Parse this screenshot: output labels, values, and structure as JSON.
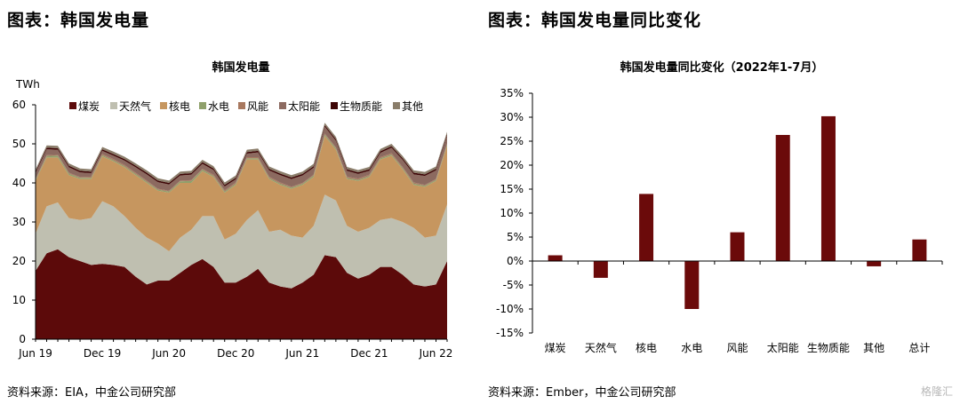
{
  "left_panel": {
    "heading": "图表：韩国发电量",
    "source": "资料来源：EIA，中金公司研究部"
  },
  "right_panel": {
    "heading": "图表：韩国发电量同比变化",
    "source": "资料来源：Ember，中金公司研究部"
  },
  "watermark": "格隆汇",
  "chart_data": [
    {
      "type": "area",
      "stacked": true,
      "title": "韩国发电量",
      "ylabel": "TWh",
      "ylim": [
        0,
        60
      ],
      "yticks": [
        0,
        10,
        20,
        30,
        40,
        50,
        60
      ],
      "xtick_labels": [
        "Jun 19",
        "Dec 19",
        "Jun 20",
        "Dec 20",
        "Jun 21",
        "Dec 21",
        "Jun 22"
      ],
      "x": [
        "2019-06",
        "2019-07",
        "2019-08",
        "2019-09",
        "2019-10",
        "2019-11",
        "2019-12",
        "2020-01",
        "2020-02",
        "2020-03",
        "2020-04",
        "2020-05",
        "2020-06",
        "2020-07",
        "2020-08",
        "2020-09",
        "2020-10",
        "2020-11",
        "2020-12",
        "2021-01",
        "2021-02",
        "2021-03",
        "2021-04",
        "2021-05",
        "2021-06",
        "2021-07",
        "2021-08",
        "2021-09",
        "2021-10",
        "2021-11",
        "2021-12",
        "2022-01",
        "2022-02",
        "2022-03",
        "2022-04",
        "2022-05",
        "2022-06",
        "2022-07"
      ],
      "legend_position": "top",
      "grid": false,
      "series": [
        {
          "name": "煤炭",
          "color": "#5c0a0a",
          "values": [
            17.5,
            22,
            23,
            21,
            20,
            19,
            19.3,
            19,
            18.5,
            16,
            14,
            15,
            15,
            17,
            19,
            20.5,
            18.5,
            14.5,
            14.5,
            16,
            18,
            14.5,
            13.5,
            13,
            14.5,
            16.5,
            21.5,
            21,
            17,
            15.5,
            16.5,
            18.5,
            18.5,
            16.5,
            14,
            13.5,
            14,
            20
          ]
        },
        {
          "name": "天然气",
          "color": "#bfbfb0",
          "values": [
            9.5,
            12,
            12,
            10,
            10.5,
            12,
            16,
            15,
            13,
            12.5,
            12,
            9.5,
            7.5,
            9,
            9,
            11,
            13,
            11,
            12.5,
            14.5,
            15,
            13,
            14.5,
            13.5,
            11.5,
            12.5,
            15.5,
            14.5,
            12,
            12,
            12,
            12,
            12.5,
            13.5,
            14.5,
            12.5,
            12.5,
            14.5
          ]
        },
        {
          "name": "核电",
          "color": "#c6965f",
          "values": [
            13.5,
            12.5,
            11.5,
            11,
            10.5,
            10,
            11.5,
            11.5,
            12.5,
            13.5,
            14,
            13.5,
            15,
            14,
            12,
            11.5,
            10,
            12,
            12.5,
            15.5,
            13,
            13.5,
            11.5,
            12,
            13.5,
            12.5,
            15,
            13,
            12,
            13,
            13,
            15.5,
            16,
            13.5,
            11,
            13,
            14,
            15
          ]
        },
        {
          "name": "水电",
          "color": "#8fa06b",
          "values": [
            0.3,
            0.4,
            0.5,
            0.4,
            0.3,
            0.3,
            0.3,
            0.3,
            0.3,
            0.3,
            0.3,
            0.3,
            0.3,
            0.4,
            0.5,
            0.4,
            0.3,
            0.3,
            0.3,
            0.3,
            0.3,
            0.3,
            0.3,
            0.3,
            0.3,
            0.4,
            0.4,
            0.4,
            0.3,
            0.3,
            0.3,
            0.3,
            0.3,
            0.3,
            0.3,
            0.3,
            0.3,
            0.4
          ]
        },
        {
          "name": "风能",
          "color": "#a8785f",
          "values": [
            0.2,
            0.2,
            0.2,
            0.2,
            0.2,
            0.3,
            0.3,
            0.3,
            0.3,
            0.3,
            0.3,
            0.2,
            0.2,
            0.2,
            0.2,
            0.2,
            0.3,
            0.3,
            0.3,
            0.3,
            0.3,
            0.3,
            0.3,
            0.2,
            0.2,
            0.2,
            0.2,
            0.2,
            0.3,
            0.3,
            0.3,
            0.3,
            0.3,
            0.3,
            0.3,
            0.2,
            0.2,
            0.2
          ]
        },
        {
          "name": "太阳能",
          "color": "#8c6a60",
          "values": [
            1.5,
            1.5,
            1.3,
            1.4,
            1.2,
            0.9,
            0.8,
            0.9,
            1.1,
            1.4,
            1.6,
            1.7,
            1.6,
            1.3,
            1.4,
            1.3,
            1.2,
            1.0,
            0.8,
            0.9,
            1.2,
            1.6,
            1.9,
            2.0,
            1.9,
            1.8,
            1.8,
            1.7,
            1.5,
            1.2,
            1.0,
            1.1,
            1.4,
            1.8,
            2.1,
            2.3,
            2.2,
            2.0
          ]
        },
        {
          "name": "生物质能",
          "color": "#3d0505",
          "values": [
            0.4,
            0.4,
            0.4,
            0.4,
            0.4,
            0.4,
            0.4,
            0.4,
            0.4,
            0.4,
            0.4,
            0.4,
            0.4,
            0.4,
            0.4,
            0.4,
            0.4,
            0.4,
            0.4,
            0.4,
            0.4,
            0.4,
            0.4,
            0.4,
            0.4,
            0.4,
            0.4,
            0.4,
            0.4,
            0.4,
            0.4,
            0.4,
            0.4,
            0.4,
            0.4,
            0.4,
            0.4,
            0.4
          ]
        },
        {
          "name": "其他",
          "color": "#8a7d6a",
          "values": [
            0.5,
            0.6,
            0.6,
            0.6,
            0.6,
            0.6,
            0.6,
            0.6,
            0.6,
            0.6,
            0.6,
            0.6,
            0.6,
            0.6,
            0.6,
            0.6,
            0.6,
            0.6,
            0.6,
            0.6,
            0.6,
            0.6,
            0.6,
            0.6,
            0.6,
            0.6,
            0.6,
            0.6,
            0.6,
            0.6,
            0.6,
            0.6,
            0.6,
            0.6,
            0.6,
            0.6,
            0.6,
            0.6
          ]
        }
      ]
    },
    {
      "type": "bar",
      "title": "韩国发电量同比变化（2022年1-7月）",
      "categories": [
        "煤炭",
        "天然气",
        "核电",
        "水电",
        "风能",
        "太阳能",
        "生物质能",
        "其他",
        "总计"
      ],
      "values": [
        1.2,
        -3.5,
        14,
        -10,
        6,
        26.3,
        30.2,
        -1.1,
        4.5
      ],
      "unit": "%",
      "ylim": [
        -15,
        35
      ],
      "yticks": [
        "-15%",
        "-10%",
        "-5%",
        "0%",
        "5%",
        "10%",
        "15%",
        "20%",
        "25%",
        "30%",
        "35%"
      ],
      "bar_color": "#6b0a0a",
      "grid": false
    }
  ]
}
